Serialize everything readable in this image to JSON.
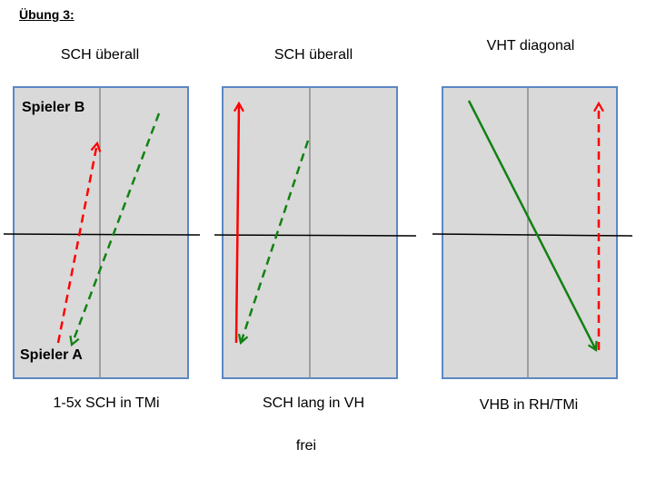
{
  "heading": "Übung 3:",
  "panels": [
    {
      "title": "SCH überall",
      "caption": "1-5x SCH in TMi",
      "player_top": "Spieler B",
      "player_bottom": "Spieler A"
    },
    {
      "title": "SCH überall",
      "caption": "SCH lang in VH"
    },
    {
      "title": "VHT diagonal",
      "caption": "VHB in RH/TMi"
    }
  ],
  "footer": "frei",
  "colors": {
    "court_fill": "#d9d9d9",
    "court_border": "#5b87c5",
    "center_line": "#8c8c8c",
    "net_line": "#000000",
    "red_arrow": "#ff0000",
    "green_arrow": "#128112"
  }
}
